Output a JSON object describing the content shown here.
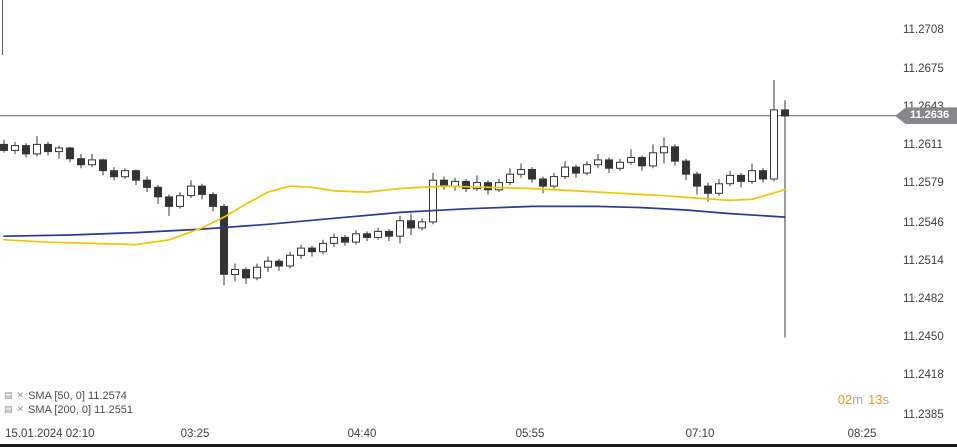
{
  "chart_data": {
    "type": "candlestick",
    "interval_minutes": 5,
    "grid": "none",
    "x_axis": {
      "labels": [
        "15.01.2024 02:10",
        "03:25",
        "04:40",
        "05:55",
        "07:10",
        "08:25"
      ]
    },
    "y_axis": {
      "labels": [
        "11.2708",
        "11.2675",
        "11.2643",
        "11.2611",
        "11.2579",
        "11.2546",
        "11.2514",
        "11.2482",
        "11.2450",
        "11.2418",
        "11.2385"
      ]
    },
    "current_price": {
      "value": 11.2636,
      "label": "11.2636"
    },
    "colors": {
      "candle": "#343434",
      "bull_fill": "#ffffff",
      "price_line": "#5a5e61",
      "badge_bg": "#85878b",
      "countdown_number": "#f09819",
      "countdown_unit": "#a6a6a6"
    },
    "candles": [
      [
        11.2612,
        11.2616,
        11.2605,
        11.2607
      ],
      [
        11.2607,
        11.2614,
        11.2604,
        11.2611
      ],
      [
        11.2611,
        11.2613,
        11.2601,
        11.2604
      ],
      [
        11.2604,
        11.2619,
        11.2602,
        11.2612
      ],
      [
        11.2612,
        11.2614,
        11.2603,
        11.2606
      ],
      [
        11.2606,
        11.2611,
        11.26,
        11.2609
      ],
      [
        11.2609,
        11.261,
        11.2597,
        11.26
      ],
      [
        11.26,
        11.2604,
        11.2592,
        11.2595
      ],
      [
        11.2595,
        11.2604,
        11.2593,
        11.2599
      ],
      [
        11.2599,
        11.26,
        11.2586,
        11.259
      ],
      [
        11.259,
        11.2593,
        11.2582,
        11.2585
      ],
      [
        11.2585,
        11.2592,
        11.2583,
        11.259
      ],
      [
        11.259,
        11.2591,
        11.2578,
        11.2582
      ],
      [
        11.2582,
        11.2585,
        11.2572,
        11.2576
      ],
      [
        11.2576,
        11.2578,
        11.2562,
        11.2568
      ],
      [
        11.2568,
        11.257,
        11.2552,
        11.256
      ],
      [
        11.256,
        11.2572,
        11.2558,
        11.2569
      ],
      [
        11.2569,
        11.2582,
        11.2567,
        11.2577
      ],
      [
        11.2577,
        11.2579,
        11.2566,
        11.257
      ],
      [
        11.257,
        11.2572,
        11.2556,
        11.256
      ],
      [
        11.256,
        11.2562,
        11.2494,
        11.2503
      ],
      [
        11.2503,
        11.2512,
        11.2497,
        11.2507
      ],
      [
        11.2507,
        11.2509,
        11.2495,
        11.25
      ],
      [
        11.25,
        11.2512,
        11.2498,
        11.2509
      ],
      [
        11.2509,
        11.2518,
        11.2505,
        11.2514
      ],
      [
        11.2514,
        11.2516,
        11.2506,
        11.251
      ],
      [
        11.251,
        11.2522,
        11.2508,
        11.2519
      ],
      [
        11.2519,
        11.2528,
        11.2516,
        11.2525
      ],
      [
        11.2525,
        11.2527,
        11.2518,
        11.2522
      ],
      [
        11.2522,
        11.2532,
        11.252,
        11.2529
      ],
      [
        11.2529,
        11.2537,
        11.2526,
        11.2534
      ],
      [
        11.2534,
        11.2536,
        11.2527,
        11.253
      ],
      [
        11.253,
        11.254,
        11.2528,
        11.2537
      ],
      [
        11.2537,
        11.2539,
        11.2531,
        11.2534
      ],
      [
        11.2534,
        11.2542,
        11.2532,
        11.2539
      ],
      [
        11.2539,
        11.2541,
        11.2531,
        11.2535
      ],
      [
        11.2535,
        11.2552,
        11.2529,
        11.2548
      ],
      [
        11.2548,
        11.2554,
        11.2536,
        11.2542
      ],
      [
        11.2542,
        11.255,
        11.254,
        11.2547
      ],
      [
        11.2547,
        11.2588,
        11.2545,
        11.2582
      ],
      [
        11.2582,
        11.2585,
        11.2574,
        11.2577
      ],
      [
        11.2577,
        11.2584,
        11.2573,
        11.2581
      ],
      [
        11.2581,
        11.2583,
        11.2572,
        11.2575
      ],
      [
        11.2575,
        11.2586,
        11.2573,
        11.258
      ],
      [
        11.258,
        11.2582,
        11.257,
        11.2574
      ],
      [
        11.2574,
        11.2583,
        11.2572,
        11.258
      ],
      [
        11.258,
        11.2592,
        11.2578,
        11.2587
      ],
      [
        11.2587,
        11.2596,
        11.2584,
        11.2591
      ],
      [
        11.2591,
        11.2593,
        11.258,
        11.2583
      ],
      [
        11.2583,
        11.2585,
        11.2571,
        11.2577
      ],
      [
        11.2577,
        11.2588,
        11.2575,
        11.2585
      ],
      [
        11.2585,
        11.2598,
        11.2583,
        11.2593
      ],
      [
        11.2593,
        11.2595,
        11.2584,
        11.2588
      ],
      [
        11.2588,
        11.2598,
        11.2586,
        11.2595
      ],
      [
        11.2595,
        11.2604,
        11.2592,
        11.2599
      ],
      [
        11.2599,
        11.2601,
        11.2588,
        11.2592
      ],
      [
        11.2592,
        11.26,
        11.259,
        11.2597
      ],
      [
        11.2597,
        11.2608,
        11.2595,
        11.2601
      ],
      [
        11.2601,
        11.2603,
        11.259,
        11.2594
      ],
      [
        11.2594,
        11.2612,
        11.2592,
        11.2605
      ],
      [
        11.2605,
        11.2618,
        11.2596,
        11.261
      ],
      [
        11.261,
        11.2612,
        11.2594,
        11.2598
      ],
      [
        11.2598,
        11.26,
        11.2582,
        11.2587
      ],
      [
        11.2587,
        11.2589,
        11.257,
        11.2577
      ],
      [
        11.2577,
        11.258,
        11.2564,
        11.2571
      ],
      [
        11.2571,
        11.2583,
        11.2569,
        11.2579
      ],
      [
        11.2579,
        11.259,
        11.2577,
        11.2586
      ],
      [
        11.2586,
        11.2588,
        11.2576,
        11.2581
      ],
      [
        11.2581,
        11.2596,
        11.2579,
        11.259
      ],
      [
        11.259,
        11.2592,
        11.258,
        11.2583
      ],
      [
        11.2583,
        11.2666,
        11.2581,
        11.2641
      ],
      [
        11.2641,
        11.2649,
        11.245,
        11.2636
      ]
    ],
    "sma50": {
      "name": "SMA [50, 0]",
      "current_value": "11.2574",
      "color": "#f5c400",
      "points": [
        [
          0,
          11.2532
        ],
        [
          4,
          11.253
        ],
        [
          8,
          11.2529
        ],
        [
          12,
          11.2528
        ],
        [
          15,
          11.2532
        ],
        [
          18,
          11.2542
        ],
        [
          20,
          11.2551
        ],
        [
          22,
          11.2562
        ],
        [
          24,
          11.2572
        ],
        [
          26,
          11.2577
        ],
        [
          28,
          11.2576
        ],
        [
          30,
          11.2573
        ],
        [
          33,
          11.2572
        ],
        [
          36,
          11.2575
        ],
        [
          40,
          11.2577
        ],
        [
          44,
          11.2576
        ],
        [
          48,
          11.2575
        ],
        [
          52,
          11.2573
        ],
        [
          56,
          11.2571
        ],
        [
          60,
          11.2569
        ],
        [
          63,
          11.2567
        ],
        [
          66,
          11.2565
        ],
        [
          68,
          11.2566
        ],
        [
          71,
          11.2574
        ]
      ]
    },
    "sma200": {
      "name": "SMA [200, 0]",
      "current_value": "11.2551",
      "color": "#2b3a97",
      "points": [
        [
          0,
          11.2535
        ],
        [
          6,
          11.2536
        ],
        [
          12,
          11.2538
        ],
        [
          18,
          11.2541
        ],
        [
          24,
          11.2545
        ],
        [
          30,
          11.255
        ],
        [
          36,
          11.2555
        ],
        [
          42,
          11.2558
        ],
        [
          48,
          11.256
        ],
        [
          54,
          11.256
        ],
        [
          58,
          11.2559
        ],
        [
          62,
          11.2557
        ],
        [
          66,
          11.2554
        ],
        [
          71,
          11.2551
        ]
      ]
    }
  },
  "indicators": [
    {
      "label": "SMA  [50, 0]  11.2574"
    },
    {
      "label": "SMA  [200, 0]  11.2551"
    }
  ],
  "countdown": {
    "minutes": "02",
    "minutes_unit": "m",
    "seconds": "13",
    "seconds_unit": "s"
  }
}
